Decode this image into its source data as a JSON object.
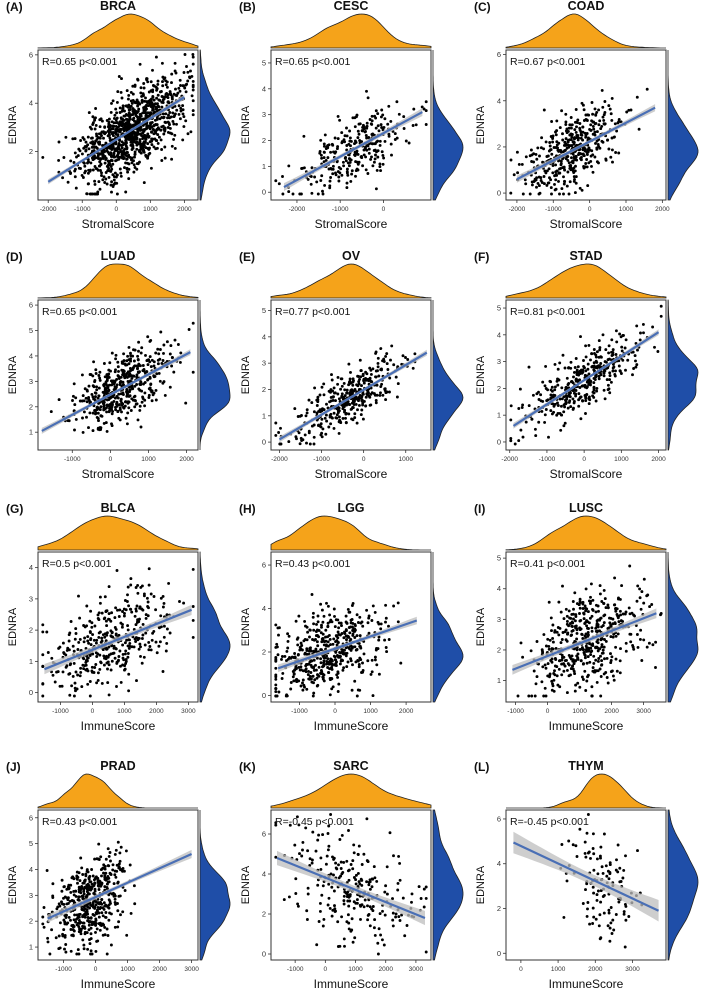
{
  "figure": {
    "colors": {
      "density_top": "#F5A31A",
      "density_right": "#1F4EA8",
      "points": "#000000",
      "fit_line": "#4A6FB5",
      "ci_band": "#BDBDBD",
      "frame": "#333333"
    }
  },
  "chart_data": [
    {
      "type": "scatter",
      "panel": "(A)",
      "title": "BRCA",
      "xlabel": "StromalScore",
      "ylabel": "EDNRA",
      "annotation": "R=0.65 p<0.001",
      "xlim": [
        -2300,
        2400
      ],
      "ylim": [
        0,
        6.2
      ],
      "xticks": [
        -2000,
        -1000,
        0,
        1000,
        2000
      ],
      "yticks": [
        2,
        4,
        6
      ],
      "fit": {
        "x": [
          -2000,
          2000
        ],
        "y": [
          0.75,
          4.25
        ]
      },
      "n_points": 1090,
      "x_mean": 400,
      "x_sd": 780,
      "y_sd_resid": 0.8,
      "seed": 11
    },
    {
      "type": "scatter",
      "panel": "(B)",
      "title": "CESC",
      "xlabel": "StromalScore",
      "ylabel": "EDNRA",
      "annotation": "R=0.65 p<0.001",
      "xlim": [
        -2600,
        1100
      ],
      "ylim": [
        -0.3,
        5.5
      ],
      "xticks": [
        -2000,
        -1000,
        0
      ],
      "yticks": [
        0,
        1,
        2,
        3,
        4,
        5
      ],
      "fit": {
        "x": [
          -2300,
          900
        ],
        "y": [
          0.2,
          3.1
        ]
      },
      "n_points": 300,
      "x_mean": -700,
      "x_sd": 650,
      "y_sd_resid": 0.6,
      "seed": 22
    },
    {
      "type": "scatter",
      "panel": "(C)",
      "title": "COAD",
      "xlabel": "StromalScore",
      "ylabel": "EDNRA",
      "annotation": "R=0.67 p<0.001",
      "xlim": [
        -2300,
        2100
      ],
      "ylim": [
        -0.3,
        6.2
      ],
      "xticks": [
        -2000,
        -1000,
        0,
        1000,
        2000
      ],
      "yticks": [
        0,
        2,
        4,
        6
      ],
      "fit": {
        "x": [
          -2000,
          1800
        ],
        "y": [
          0.6,
          3.7
        ]
      },
      "n_points": 450,
      "x_mean": -500,
      "x_sd": 650,
      "y_sd_resid": 0.75,
      "seed": 33
    },
    {
      "type": "scatter",
      "panel": "(D)",
      "title": "LUAD",
      "xlabel": "StromalScore",
      "ylabel": "EDNRA",
      "annotation": "R=0.65 p<0.001",
      "xlim": [
        -1900,
        2300
      ],
      "ylim": [
        0.3,
        6.2
      ],
      "xticks": [
        -1000,
        0,
        1000,
        2000
      ],
      "yticks": [
        1,
        2,
        3,
        4,
        5,
        6
      ],
      "fit": {
        "x": [
          -1800,
          2100
        ],
        "y": [
          1.05,
          4.15
        ]
      },
      "n_points": 500,
      "x_mean": 300,
      "x_sd": 650,
      "y_sd_resid": 0.6,
      "seed": 44
    },
    {
      "type": "scatter",
      "panel": "(E)",
      "title": "OV",
      "xlabel": "StromalScore",
      "ylabel": "EDNRA",
      "annotation": "R=0.77 p<0.001",
      "xlim": [
        -2200,
        1600
      ],
      "ylim": [
        -0.3,
        5.4
      ],
      "xticks": [
        -2000,
        -1000,
        0,
        1000
      ],
      "yticks": [
        0,
        1,
        2,
        3,
        4,
        5
      ],
      "fit": {
        "x": [
          -2000,
          1500
        ],
        "y": [
          0.1,
          3.4
        ]
      },
      "n_points": 380,
      "x_mean": -400,
      "x_sd": 650,
      "y_sd_resid": 0.5,
      "seed": 55
    },
    {
      "type": "scatter",
      "panel": "(F)",
      "title": "STAD",
      "xlabel": "StromalScore",
      "ylabel": "EDNRA",
      "annotation": "R=0.81 p<0.001",
      "xlim": [
        -2100,
        2200
      ],
      "ylim": [
        -0.3,
        5.3
      ],
      "xticks": [
        -2000,
        -1000,
        0,
        1000,
        2000
      ],
      "yticks": [
        0,
        1,
        2,
        3,
        4,
        5
      ],
      "fit": {
        "x": [
          -1900,
          2000
        ],
        "y": [
          0.6,
          4.1
        ]
      },
      "n_points": 400,
      "x_mean": 0,
      "x_sd": 750,
      "y_sd_resid": 0.5,
      "seed": 66
    },
    {
      "type": "scatter",
      "panel": "(G)",
      "title": "BLCA",
      "xlabel": "ImmuneScore",
      "ylabel": "EDNRA",
      "annotation": "R=0.5 p<0.001",
      "xlim": [
        -1700,
        3300
      ],
      "ylim": [
        -0.3,
        4.5
      ],
      "xticks": [
        -1000,
        0,
        1000,
        2000,
        3000
      ],
      "yticks": [
        0,
        1,
        2,
        3,
        4
      ],
      "fit": {
        "x": [
          -1500,
          3100
        ],
        "y": [
          0.75,
          2.65
        ]
      },
      "n_points": 400,
      "x_mean": 600,
      "x_sd": 950,
      "y_sd_resid": 0.75,
      "seed": 77
    },
    {
      "type": "scatter",
      "panel": "(H)",
      "title": "LGG",
      "xlabel": "ImmuneScore",
      "ylabel": "EDNRA",
      "annotation": "R=0.43 p<0.001",
      "xlim": [
        -1800,
        2700
      ],
      "ylim": [
        -0.3,
        6.6
      ],
      "xticks": [
        -1000,
        0,
        1000,
        2000
      ],
      "yticks": [
        0,
        2,
        4,
        6
      ],
      "fit": {
        "x": [
          -1600,
          2300
        ],
        "y": [
          1.25,
          3.45
        ]
      },
      "n_points": 510,
      "x_mean": -200,
      "x_sd": 750,
      "y_sd_resid": 0.9,
      "seed": 88
    },
    {
      "type": "scatter",
      "panel": "(I)",
      "title": "LUSC",
      "xlabel": "ImmuneScore",
      "ylabel": "EDNRA",
      "annotation": "R=0.41 p<0.001",
      "xlim": [
        -1300,
        3700
      ],
      "ylim": [
        0.3,
        5.2
      ],
      "xticks": [
        -1000,
        0,
        1000,
        2000,
        3000
      ],
      "yticks": [
        1,
        2,
        3,
        4,
        5
      ],
      "fit": {
        "x": [
          -1100,
          3400
        ],
        "y": [
          1.35,
          3.2
        ]
      },
      "n_points": 490,
      "x_mean": 1200,
      "x_sd": 900,
      "y_sd_resid": 0.8,
      "seed": 99
    },
    {
      "type": "scatter",
      "panel": "(J)",
      "title": "PRAD",
      "xlabel": "ImmuneScore",
      "ylabel": "EDNRA",
      "annotation": "R=0.43 p<0.001",
      "xlim": [
        -1800,
        3200
      ],
      "ylim": [
        0.5,
        6.3
      ],
      "xticks": [
        -1000,
        0,
        1000,
        2000,
        3000
      ],
      "yticks": [
        1,
        2,
        3,
        4,
        5,
        6
      ],
      "fit": {
        "x": [
          -1500,
          3000
        ],
        "y": [
          2.1,
          4.6
        ]
      },
      "n_points": 490,
      "x_mean": -200,
      "x_sd": 550,
      "y_sd_resid": 0.8,
      "seed": 111
    },
    {
      "type": "scatter",
      "panel": "(K)",
      "title": "SARC",
      "xlabel": "ImmuneScore",
      "ylabel": "EDNRA",
      "annotation": "R=-0.45 p<0.001",
      "xlim": [
        -1800,
        3500
      ],
      "ylim": [
        -0.3,
        7.2
      ],
      "xticks": [
        -1000,
        0,
        1000,
        2000,
        3000
      ],
      "yticks": [
        0,
        2,
        4,
        6
      ],
      "fit": {
        "x": [
          -1600,
          3300
        ],
        "y": [
          4.8,
          1.8
        ]
      },
      "n_points": 260,
      "x_mean": 900,
      "x_sd": 1100,
      "y_sd_resid": 1.3,
      "seed": 122
    },
    {
      "type": "scatter",
      "panel": "(L)",
      "title": "THYM",
      "xlabel": "ImmuneScore",
      "ylabel": "EDNRA",
      "annotation": "R=-0.45 p<0.001",
      "xlim": [
        -400,
        3900
      ],
      "ylim": [
        -0.3,
        6.4
      ],
      "xticks": [
        0,
        1000,
        2000,
        3000
      ],
      "yticks": [
        0,
        2,
        4,
        6
      ],
      "fit": {
        "x": [
          -200,
          3700
        ],
        "y": [
          4.95,
          1.9
        ]
      },
      "n_points": 120,
      "x_mean": 2200,
      "x_sd": 500,
      "y_sd_resid": 1.2,
      "seed": 133
    }
  ]
}
